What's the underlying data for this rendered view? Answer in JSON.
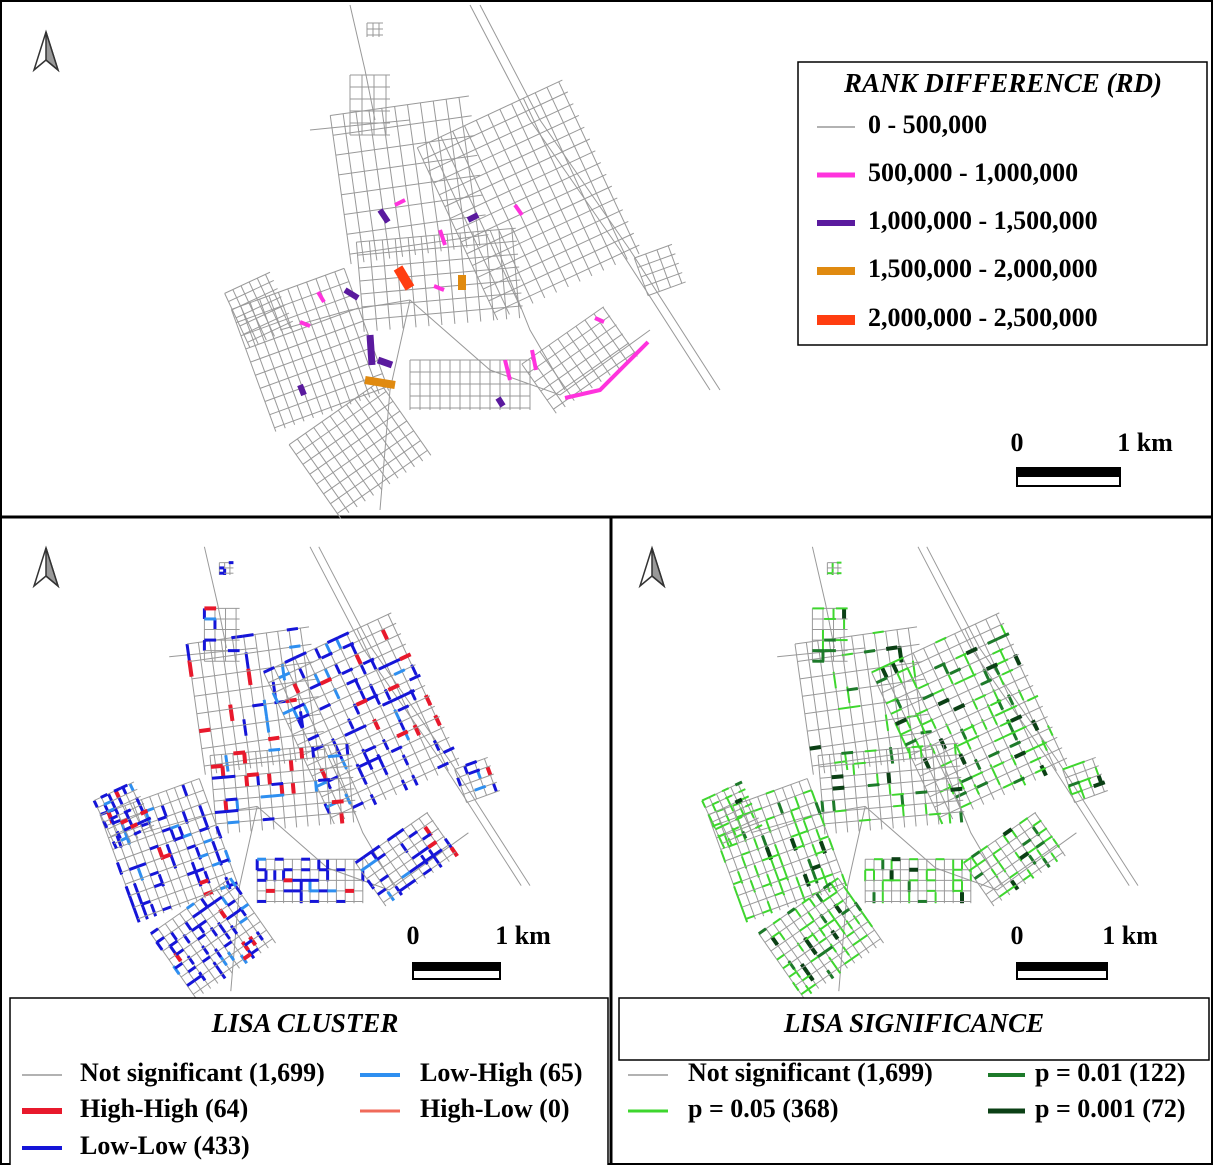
{
  "top_map": {
    "legend": {
      "title": "RANK DIFFERENCE (RD)",
      "items": [
        "0 - 500,000",
        "500,000 - 1,000,000",
        "1,000,000 - 1,500,000",
        "1,500,000 - 2,000,000",
        "2,000,000 - 2,500,000"
      ]
    },
    "scale_bar": {
      "start": "0",
      "end": "1 km"
    }
  },
  "cluster_map": {
    "legend": {
      "title": "LISA CLUSTER",
      "items": [
        "Not significant (1,699)",
        "Low-High (65)",
        "High-High (64)",
        "High-Low (0)",
        "Low-Low (433)"
      ]
    },
    "scale_bar": {
      "start": "0",
      "end": "1 km"
    }
  },
  "significance_map": {
    "legend": {
      "title": "LISA SIGNIFICANCE",
      "items": [
        "Not significant (1,699)",
        "p = 0.01 (122)",
        "p = 0.05 (368)",
        "p = 0.001 (72)"
      ]
    },
    "scale_bar": {
      "start": "0",
      "end": "1 km"
    }
  }
}
